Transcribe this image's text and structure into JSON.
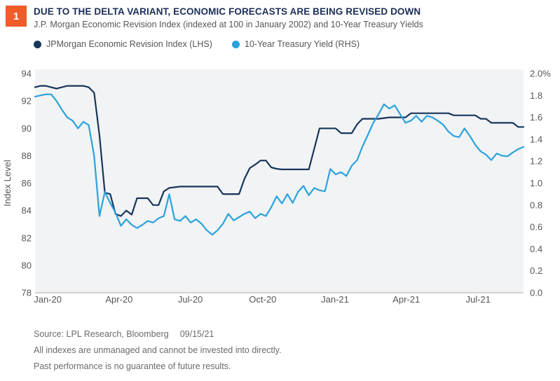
{
  "colors": {
    "accent_orange": "#F05B28",
    "navy_line": "#16365C",
    "light_blue_line": "#2AA2DC",
    "title_navy": "#1B2E57",
    "plot_background": "#F2F3F4",
    "axis_line": "#BDBDBD",
    "text_gray": "#55565A",
    "footer_gray": "#6A6B6E"
  },
  "header": {
    "figure_number": "1",
    "title": "DUE TO THE DELTA VARIANT, ECONOMIC FORECASTS ARE BEING REVISED DOWN",
    "subtitle": "J.P. Morgan Economic Revision Index (indexed at 100 in January 2002) and 10-Year Treasury Yields",
    "legend_items": [
      {
        "label": "JPMorgan Economic Revision Index (LHS)",
        "color": "#16365C"
      },
      {
        "label": "10-Year Treasury Yield (RHS)",
        "color": "#2AA2DC"
      }
    ]
  },
  "chart_data": {
    "type": "line",
    "plot_bg": "#F2F3F4",
    "axis_line_color": "#BDBDBD",
    "grid": false,
    "legend_position": "top",
    "x_tick_labels": [
      "Jan-20",
      "Apr-20",
      "Jul-20",
      "Oct-20",
      "Jan-21",
      "Apr-21",
      "Jul-21"
    ],
    "x_tick_positions": [
      0.026,
      0.172,
      0.318,
      0.466,
      0.614,
      0.76,
      0.907
    ],
    "left_axis": {
      "label": "Index Level",
      "min": 78,
      "max": 94,
      "tick_values": [
        94,
        92,
        90,
        88,
        86,
        84,
        82,
        80,
        78
      ],
      "tick_labels": [
        "94",
        "92",
        "90",
        "88",
        "86",
        "84",
        "82",
        "80",
        "78"
      ]
    },
    "right_axis": {
      "label": "",
      "min": 0.0,
      "max": 2.0,
      "tick_values": [
        2.0,
        1.8,
        1.6,
        1.4,
        1.2,
        1.0,
        0.8,
        0.6,
        0.4,
        0.2,
        0.0
      ],
      "tick_labels": [
        "2.0%",
        "1.8",
        "1.6",
        "1.4",
        "1.2",
        "1.0",
        "0.8",
        "0.6",
        "0.4",
        "0.2",
        "0.0"
      ]
    },
    "series": [
      {
        "name": "JPMorgan Economic Revision Index (LHS)",
        "data_name": "jpmorgan-index-line",
        "axis": "left",
        "color": "#16365C",
        "values": [
          93.0,
          93.1,
          93.1,
          93.0,
          92.9,
          93.0,
          93.1,
          93.1,
          93.1,
          93.1,
          93.0,
          92.6,
          89.5,
          85.3,
          85.2,
          83.75,
          83.6,
          84.0,
          83.7,
          84.9,
          84.9,
          84.9,
          84.4,
          84.4,
          85.4,
          85.65,
          85.7,
          85.75,
          85.75,
          85.75,
          85.75,
          85.75,
          85.75,
          85.75,
          85.75,
          85.2,
          85.2,
          85.2,
          85.2,
          86.3,
          87.1,
          87.35,
          87.65,
          87.65,
          87.15,
          87.05,
          87.0,
          87.0,
          87.0,
          87.0,
          87.0,
          87.0,
          88.5,
          90.0,
          90.0,
          90.0,
          90.0,
          89.65,
          89.65,
          89.65,
          90.3,
          90.7,
          90.7,
          90.7,
          90.7,
          90.75,
          90.8,
          90.8,
          90.8,
          90.8,
          91.1,
          91.1,
          91.1,
          91.1,
          91.1,
          91.1,
          91.1,
          91.1,
          90.95,
          90.95,
          90.95,
          90.95,
          90.95,
          90.7,
          90.7,
          90.4,
          90.4,
          90.4,
          90.4,
          90.4,
          90.1,
          90.1
        ]
      },
      {
        "name": "10-Year Treasury Yield (RHS)",
        "data_name": "treasury-yield-line",
        "axis": "right",
        "color": "#2AA2DC",
        "values": [
          1.79,
          1.8,
          1.81,
          1.81,
          1.75,
          1.67,
          1.6,
          1.57,
          1.5,
          1.56,
          1.53,
          1.25,
          0.7,
          0.92,
          0.82,
          0.73,
          0.61,
          0.67,
          0.62,
          0.59,
          0.62,
          0.655,
          0.64,
          0.68,
          0.7,
          0.9,
          0.67,
          0.655,
          0.7,
          0.64,
          0.67,
          0.63,
          0.57,
          0.53,
          0.57,
          0.63,
          0.72,
          0.66,
          0.69,
          0.72,
          0.74,
          0.68,
          0.72,
          0.7,
          0.78,
          0.88,
          0.815,
          0.9,
          0.82,
          0.92,
          0.975,
          0.89,
          0.955,
          0.935,
          0.925,
          1.13,
          1.08,
          1.1,
          1.065,
          1.16,
          1.21,
          1.335,
          1.44,
          1.55,
          1.63,
          1.72,
          1.68,
          1.71,
          1.63,
          1.55,
          1.57,
          1.615,
          1.56,
          1.615,
          1.6,
          1.57,
          1.535,
          1.47,
          1.43,
          1.42,
          1.5,
          1.43,
          1.35,
          1.29,
          1.26,
          1.21,
          1.27,
          1.25,
          1.245,
          1.28,
          1.31,
          1.33
        ]
      }
    ]
  },
  "footer": {
    "source": "Source: LPL Research, Bloomberg",
    "date": "09/15/21",
    "disclaimer1": "All indexes are unmanaged and cannot be invested into directly.",
    "disclaimer2": "Past performance is no guarantee of future results."
  }
}
